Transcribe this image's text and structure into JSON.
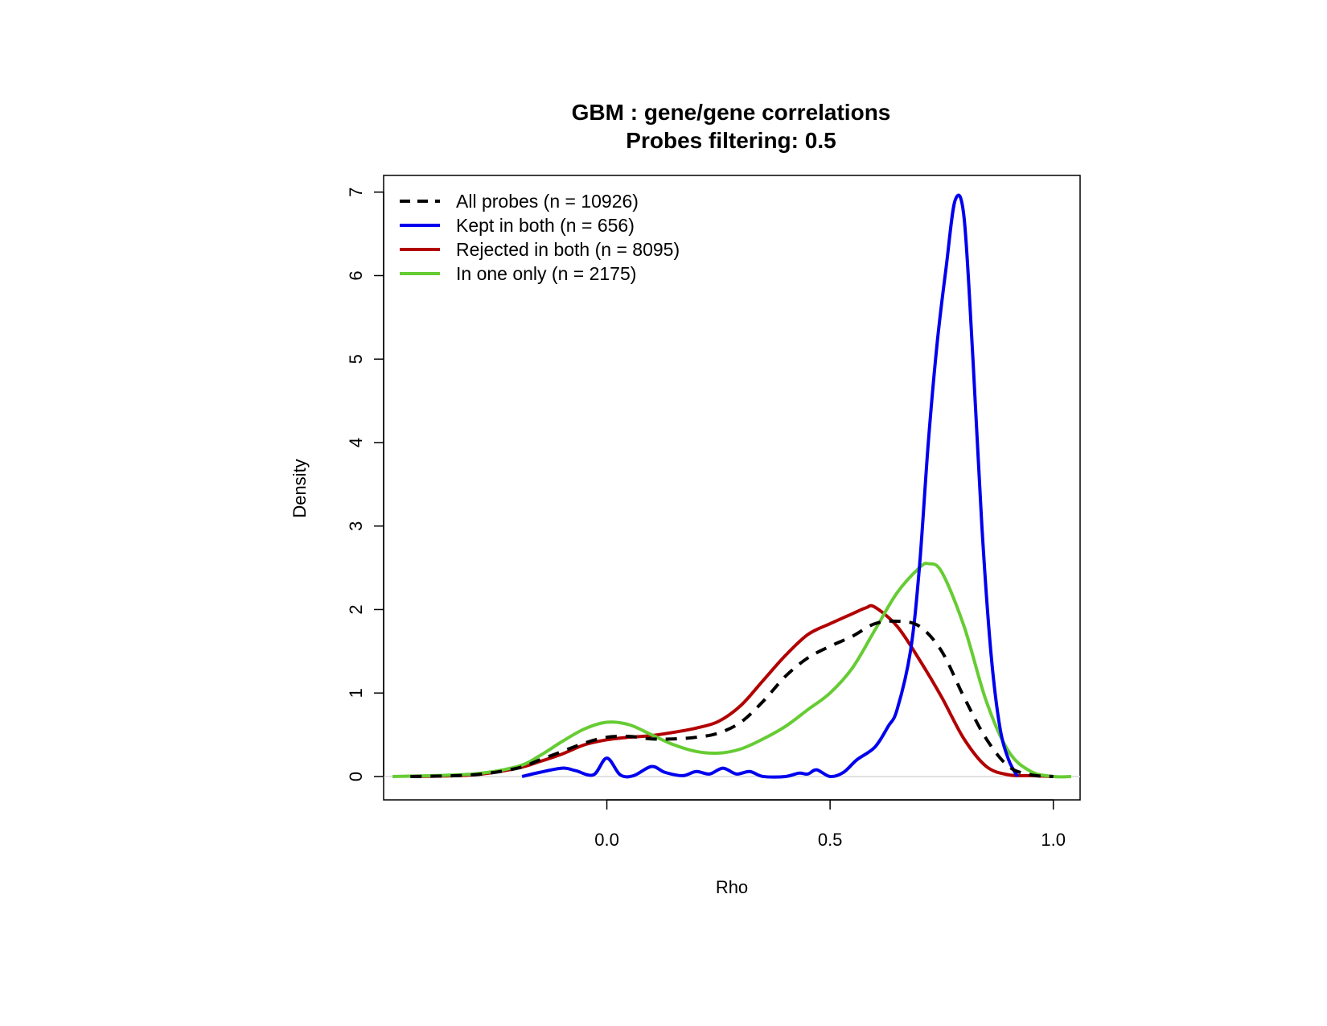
{
  "chart_data": {
    "type": "line",
    "title": "GBM : gene/gene correlations",
    "subtitle": "Probes filtering: 0.5",
    "xlabel": "Rho",
    "ylabel": "Density",
    "xlim": [
      -0.5,
      1.06
    ],
    "ylim": [
      -0.28,
      7.2
    ],
    "x_ticks": [
      0.0,
      0.5,
      1.0
    ],
    "x_tick_labels": [
      "0.0",
      "0.5",
      "1.0"
    ],
    "y_ticks": [
      0,
      1,
      2,
      3,
      4,
      5,
      6,
      7
    ],
    "y_tick_labels": [
      "0",
      "1",
      "2",
      "3",
      "4",
      "5",
      "6",
      "7"
    ],
    "grid": false,
    "zero_line": true,
    "legend_position": "top-left",
    "series": [
      {
        "name": "All probes (n = 10926)",
        "color": "#000000",
        "style": "dashed",
        "x": [
          -0.44,
          -0.3,
          -0.2,
          -0.15,
          -0.1,
          -0.05,
          0.0,
          0.05,
          0.1,
          0.15,
          0.2,
          0.25,
          0.3,
          0.35,
          0.4,
          0.45,
          0.5,
          0.55,
          0.6,
          0.65,
          0.7,
          0.75,
          0.8,
          0.85,
          0.9,
          0.95,
          1.0
        ],
        "y": [
          0.0,
          0.02,
          0.1,
          0.2,
          0.3,
          0.4,
          0.47,
          0.48,
          0.45,
          0.45,
          0.47,
          0.52,
          0.65,
          0.9,
          1.2,
          1.42,
          1.56,
          1.68,
          1.83,
          1.86,
          1.8,
          1.5,
          0.95,
          0.45,
          0.12,
          0.02,
          0.0
        ]
      },
      {
        "name": "Kept in both (n = 656)",
        "color": "#0000ee",
        "style": "solid",
        "x": [
          -0.19,
          -0.15,
          -0.1,
          -0.07,
          -0.03,
          0.0,
          0.03,
          0.06,
          0.1,
          0.13,
          0.17,
          0.2,
          0.23,
          0.26,
          0.29,
          0.32,
          0.35,
          0.4,
          0.43,
          0.45,
          0.47,
          0.5,
          0.53,
          0.56,
          0.6,
          0.63,
          0.65,
          0.68,
          0.7,
          0.72,
          0.74,
          0.76,
          0.78,
          0.8,
          0.82,
          0.84,
          0.86,
          0.88,
          0.9,
          0.92
        ],
        "y": [
          0.0,
          0.05,
          0.1,
          0.07,
          0.02,
          0.22,
          0.02,
          0.01,
          0.12,
          0.05,
          0.01,
          0.06,
          0.03,
          0.1,
          0.03,
          0.06,
          0.0,
          0.0,
          0.04,
          0.03,
          0.08,
          0.0,
          0.05,
          0.2,
          0.35,
          0.6,
          0.8,
          1.5,
          2.5,
          4.0,
          5.2,
          6.1,
          6.9,
          6.7,
          5.0,
          3.0,
          1.5,
          0.6,
          0.2,
          0.0
        ]
      },
      {
        "name": "Rejected in both (n = 8095)",
        "color": "#b20000",
        "style": "solid",
        "x": [
          -0.44,
          -0.3,
          -0.2,
          -0.15,
          -0.1,
          -0.05,
          0.0,
          0.05,
          0.1,
          0.15,
          0.2,
          0.25,
          0.3,
          0.35,
          0.4,
          0.45,
          0.5,
          0.55,
          0.58,
          0.6,
          0.65,
          0.7,
          0.75,
          0.8,
          0.85,
          0.9,
          0.95,
          1.0
        ],
        "y": [
          0.0,
          0.02,
          0.1,
          0.18,
          0.27,
          0.38,
          0.44,
          0.47,
          0.49,
          0.53,
          0.58,
          0.66,
          0.85,
          1.15,
          1.45,
          1.7,
          1.83,
          1.95,
          2.02,
          2.03,
          1.8,
          1.4,
          0.95,
          0.45,
          0.12,
          0.02,
          0.01,
          0.0
        ]
      },
      {
        "name": "In one only (n = 2175)",
        "color": "#66cc33",
        "style": "solid",
        "x": [
          -0.48,
          -0.3,
          -0.2,
          -0.15,
          -0.1,
          -0.05,
          0.0,
          0.05,
          0.1,
          0.15,
          0.2,
          0.25,
          0.3,
          0.35,
          0.4,
          0.45,
          0.5,
          0.55,
          0.6,
          0.65,
          0.7,
          0.72,
          0.75,
          0.8,
          0.85,
          0.9,
          0.95,
          1.0,
          1.04
        ],
        "y": [
          0.0,
          0.03,
          0.12,
          0.25,
          0.42,
          0.57,
          0.65,
          0.62,
          0.5,
          0.38,
          0.3,
          0.28,
          0.33,
          0.45,
          0.6,
          0.8,
          1.0,
          1.3,
          1.75,
          2.2,
          2.5,
          2.55,
          2.45,
          1.8,
          0.9,
          0.3,
          0.06,
          0.0,
          0.0
        ]
      }
    ]
  }
}
